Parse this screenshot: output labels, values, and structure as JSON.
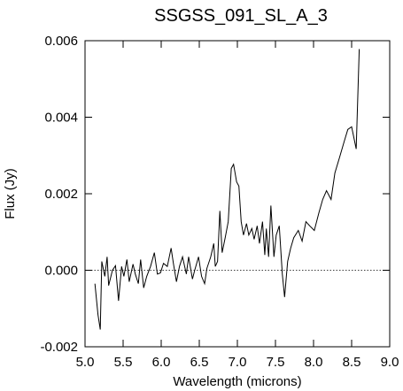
{
  "chart_data": {
    "type": "line",
    "title": "SSGSS_091_SL_A_3",
    "x_label": "Wavelength (microns)",
    "y_label": "Flux (Jy)",
    "xlim": [
      5.0,
      9.0
    ],
    "ylim": [
      -0.002,
      0.006
    ],
    "xticks": [
      {
        "value": 5.0,
        "label": "5.0"
      },
      {
        "value": 5.5,
        "label": "5.5"
      },
      {
        "value": 6.0,
        "label": "6.0"
      },
      {
        "value": 6.5,
        "label": "6.5"
      },
      {
        "value": 7.0,
        "label": "7.0"
      },
      {
        "value": 7.5,
        "label": "7.5"
      },
      {
        "value": 8.0,
        "label": "8.0"
      },
      {
        "value": 8.5,
        "label": "8.5"
      },
      {
        "value": 9.0,
        "label": "9.0"
      }
    ],
    "yticks": [
      {
        "value": -0.002,
        "label": "-0.002"
      },
      {
        "value": 0.0,
        "label": "0.000"
      },
      {
        "value": 0.002,
        "label": "0.002"
      },
      {
        "value": 0.004,
        "label": "0.004"
      },
      {
        "value": 0.006,
        "label": "0.006"
      }
    ],
    "reference_line": 0,
    "series": [
      {
        "color": "#000000",
        "x": [
          5.13,
          5.17,
          5.2,
          5.22,
          5.26,
          5.29,
          5.31,
          5.36,
          5.4,
          5.44,
          5.48,
          5.51,
          5.55,
          5.58,
          5.63,
          5.66,
          5.7,
          5.73,
          5.77,
          5.81,
          5.86,
          5.91,
          5.95,
          5.99,
          6.03,
          6.08,
          6.13,
          6.16,
          6.2,
          6.24,
          6.28,
          6.33,
          6.36,
          6.41,
          6.44,
          6.49,
          6.53,
          6.57,
          6.6,
          6.65,
          6.69,
          6.71,
          6.74,
          6.77,
          6.8,
          6.84,
          6.88,
          6.92,
          6.95,
          6.99,
          7.02,
          7.05,
          7.08,
          7.12,
          7.15,
          7.19,
          7.22,
          7.26,
          7.29,
          7.33,
          7.36,
          7.38,
          7.41,
          7.44,
          7.48,
          7.51,
          7.55,
          7.59,
          7.62,
          7.66,
          7.7,
          7.74,
          7.8,
          7.85,
          7.9,
          7.95,
          8.01,
          8.07,
          8.12,
          8.17,
          8.23,
          8.28,
          8.34,
          8.4,
          8.45,
          8.5,
          8.56,
          8.6
        ],
        "values": [
          -0.00035,
          -0.00116,
          -0.00155,
          0.00023,
          -0.00016,
          0.00035,
          -0.0004,
          0,
          0.00012,
          -0.0008,
          0.0001,
          -0.00016,
          0.00028,
          -0.0003,
          0.00016,
          -0.0001,
          -0.00035,
          0.00028,
          -0.00046,
          -0.00016,
          0.0001,
          0.00046,
          -0.0001,
          -7e-05,
          0.00018,
          0.0001,
          0.00058,
          0.00018,
          -0.0003,
          0.0001,
          0.00035,
          -0.0001,
          0.00035,
          -0.00023,
          0,
          0.00035,
          -0.00016,
          -0.00035,
          5e-05,
          0.00035,
          0.0007,
          0.0001,
          0.00023,
          0.00155,
          0.00046,
          0.00085,
          0.00127,
          0.00266,
          0.00277,
          0.00231,
          0.0022,
          0.00127,
          0.00092,
          0.00122,
          0.00092,
          0.00109,
          0.00081,
          0.00116,
          0.0007,
          0.00127,
          0.0004,
          0.00109,
          0.00035,
          0.00169,
          0.00035,
          0.00092,
          0.00116,
          -0.0001,
          -0.0007,
          0.00023,
          0.00058,
          0.00085,
          0.00104,
          0.00076,
          0.00127,
          0.00116,
          0.00104,
          0.0015,
          0.00185,
          0.00208,
          0.00185,
          0.00254,
          0.00294,
          0.00335,
          0.00368,
          0.00375,
          0.00317,
          0.00578
        ]
      }
    ]
  }
}
